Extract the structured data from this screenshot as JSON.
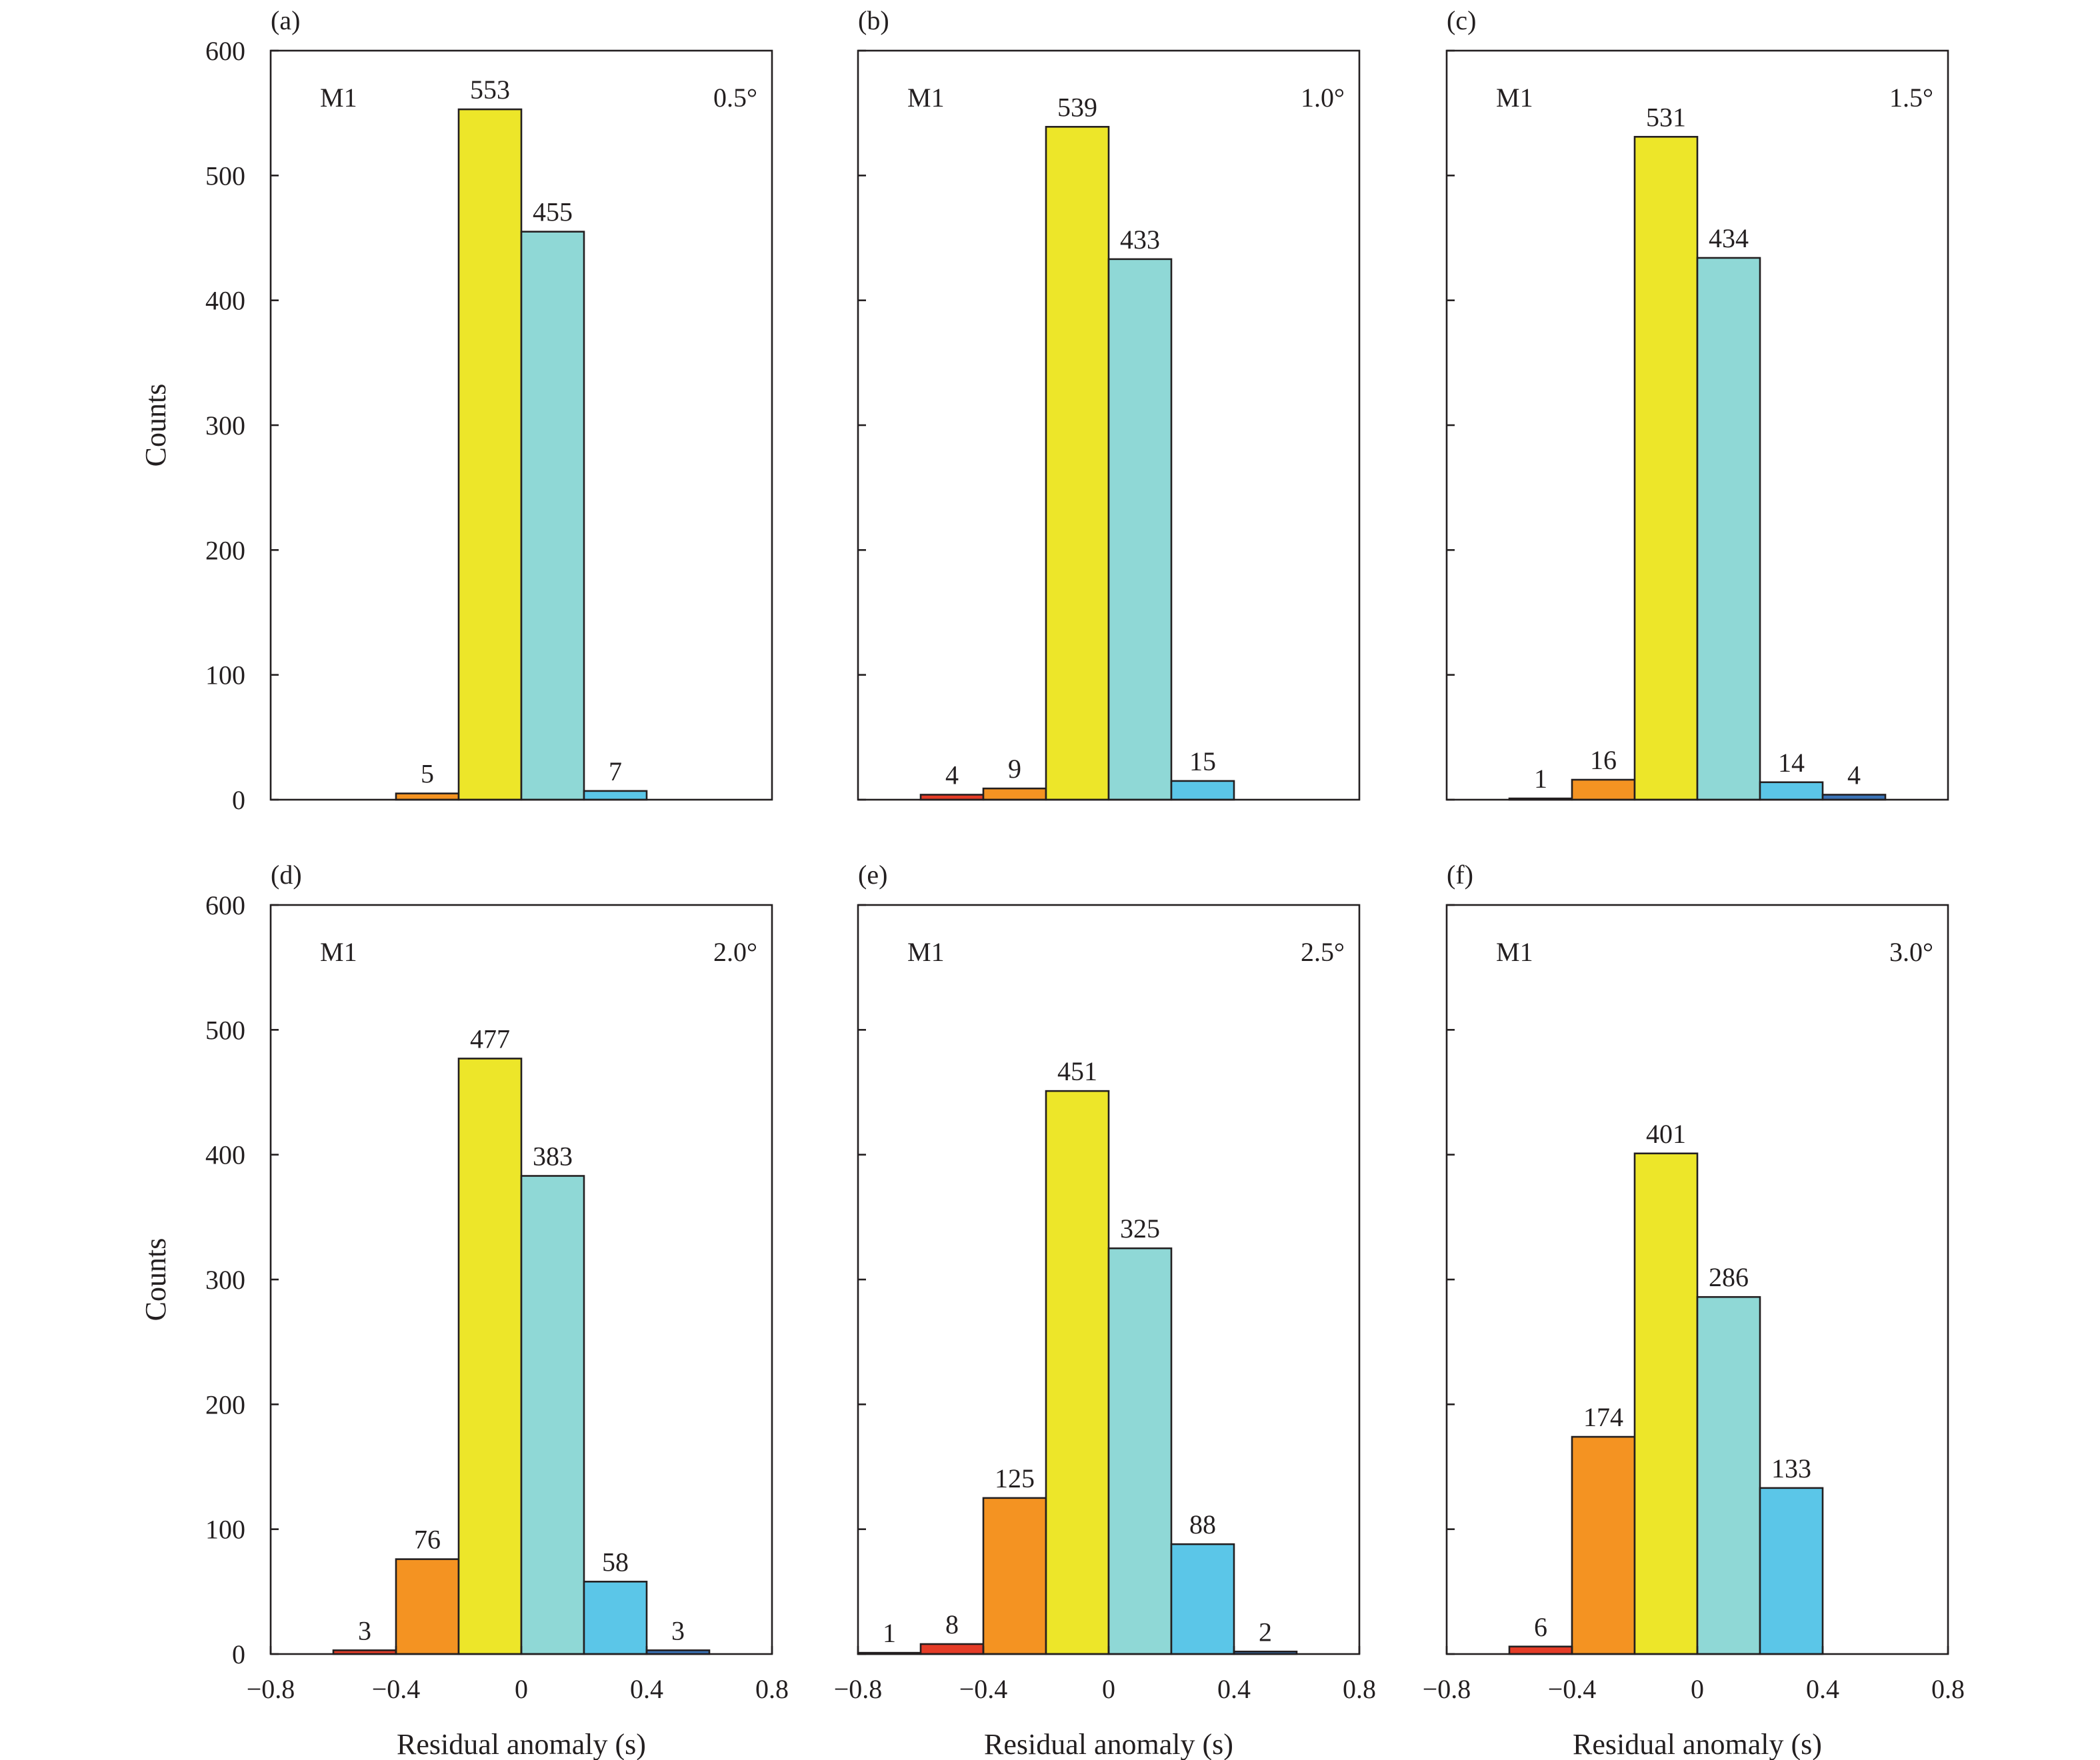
{
  "chart_data": [
    {
      "type": "bar",
      "panel_label": "(a)",
      "model_label": "M1",
      "angle_label": "0.5°",
      "bin_edges": [
        -0.6,
        -0.4,
        -0.2,
        0,
        0.2,
        0.4,
        0.6
      ],
      "values": [
        0,
        5,
        553,
        455,
        7,
        0
      ],
      "value_labels": [
        "",
        "5",
        "553",
        "455",
        "7",
        ""
      ],
      "xlabel": "",
      "ylabel": "Counts",
      "ylim": [
        0,
        600
      ],
      "xlim": [
        -0.8,
        0.8
      ]
    },
    {
      "type": "bar",
      "panel_label": "(b)",
      "model_label": "M1",
      "angle_label": "1.0°",
      "bin_edges": [
        -0.6,
        -0.4,
        -0.2,
        0,
        0.2,
        0.4,
        0.6
      ],
      "values": [
        4,
        9,
        539,
        433,
        15,
        0
      ],
      "value_labels": [
        "4",
        "9",
        "539",
        "433",
        "15",
        ""
      ],
      "xlabel": "",
      "ylabel": "",
      "ylim": [
        0,
        600
      ],
      "xlim": [
        -0.8,
        0.8
      ]
    },
    {
      "type": "bar",
      "panel_label": "(c)",
      "model_label": "M1",
      "angle_label": "1.5°",
      "bin_edges": [
        -0.6,
        -0.4,
        -0.2,
        0,
        0.2,
        0.4,
        0.6
      ],
      "values": [
        1,
        16,
        531,
        434,
        14,
        4
      ],
      "value_labels": [
        "1",
        "16",
        "531",
        "434",
        "14",
        "4"
      ],
      "xlabel": "",
      "ylabel": "",
      "ylim": [
        0,
        600
      ],
      "xlim": [
        -0.8,
        0.8
      ]
    },
    {
      "type": "bar",
      "panel_label": "(d)",
      "model_label": "M1",
      "angle_label": "2.0°",
      "bin_edges": [
        -0.6,
        -0.4,
        -0.2,
        0,
        0.2,
        0.4,
        0.6
      ],
      "values": [
        3,
        76,
        477,
        383,
        58,
        3
      ],
      "value_labels": [
        "3",
        "76",
        "477",
        "383",
        "58",
        "3"
      ],
      "xlabel": "Residual anomaly (s)",
      "ylabel": "Counts",
      "ylim": [
        0,
        600
      ],
      "xlim": [
        -0.8,
        0.8
      ]
    },
    {
      "type": "bar",
      "panel_label": "(e)",
      "model_label": "M1",
      "angle_label": "2.5°",
      "bin_edges": [
        -0.8,
        -0.6,
        -0.4,
        -0.2,
        0,
        0.2,
        0.4,
        0.6
      ],
      "values": [
        1,
        8,
        125,
        451,
        325,
        88,
        2
      ],
      "value_labels": [
        "1",
        "8",
        "125",
        "451",
        "325",
        "88",
        "2"
      ],
      "xlabel": "Residual anomaly (s)",
      "ylabel": "",
      "ylim": [
        0,
        600
      ],
      "xlim": [
        -0.8,
        0.8
      ]
    },
    {
      "type": "bar",
      "panel_label": "(f)",
      "model_label": "M1",
      "angle_label": "3.0°",
      "bin_edges": [
        -0.6,
        -0.4,
        -0.2,
        0,
        0.2,
        0.4
      ],
      "values": [
        6,
        174,
        401,
        286,
        133
      ],
      "value_labels": [
        "6",
        "174",
        "401",
        "286",
        "133"
      ],
      "xlabel": "Residual anomaly (s)",
      "ylabel": "",
      "ylim": [
        0,
        600
      ],
      "xlim": [
        -0.8,
        0.8
      ]
    }
  ],
  "shared": {
    "y_ticks": [
      0,
      100,
      200,
      300,
      400,
      500,
      600
    ],
    "y_tick_labels": [
      "0",
      "100",
      "200",
      "300",
      "400",
      "500",
      "600"
    ],
    "x_ticks": [
      -0.8,
      -0.4,
      0,
      0.4,
      0.8
    ],
    "x_tick_labels": [
      "−0.8",
      "−0.4",
      "0",
      "0.4",
      "0.8"
    ],
    "bin_colors": {
      "-0.8": "#8b2a1c",
      "-0.6": "#e53c27",
      "-0.4": "#f49322",
      "-0.2": "#ede629",
      "0": "#8fd8d6",
      "0.2": "#5bc6e8",
      "0.4": "#3a73b7"
    },
    "axis_color": "#231f20"
  }
}
